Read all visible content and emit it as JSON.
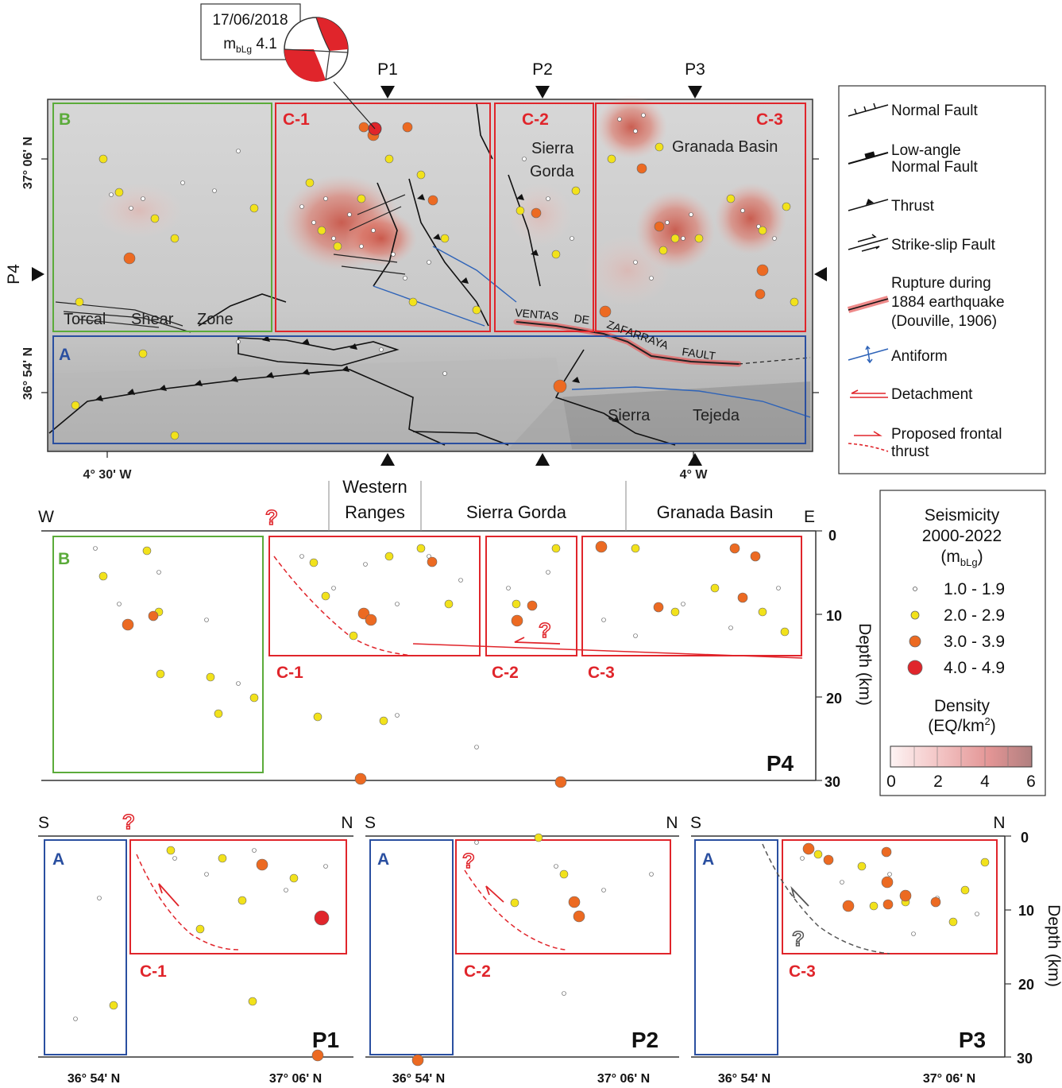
{
  "focal_label": {
    "date": "17/06/2018",
    "mag_prefix": "m",
    "mag_sub": "bLg",
    "mag_value": " 4.1"
  },
  "profile_markers": [
    "P1",
    "P2",
    "P3",
    "P4"
  ],
  "map": {
    "lat_labels": [
      "37° 06' N",
      "36° 54' N"
    ],
    "lon_labels": [
      "4° 30' W",
      "4° W"
    ],
    "boxes": {
      "B": "B",
      "C1": "C-1",
      "C2": "C-2",
      "C3": "C-3",
      "A": "A"
    },
    "places": {
      "sierra_gorda_1": "Sierra",
      "sierra_gorda_2": "Gorda",
      "granada_basin": "Granada Basin",
      "torcal": "Torcal",
      "shear": "Shear",
      "zone": "Zone",
      "sierra_tejeda_1": "Sierra",
      "sierra_tejeda_2": "Tejeda",
      "ventas": "VENTAS",
      "de": "DE",
      "zafarraya": "ZAFARRAYA",
      "fault": "FAULT"
    },
    "colors": {
      "box_A": "#2a4fa0",
      "box_B": "#5bab3a",
      "box_C": "#e0252b",
      "fault_rupture": "#e85a5a",
      "antiform": "#2e63b8"
    }
  },
  "legend": {
    "items": [
      "Normal Fault",
      "Low-angle",
      "Normal Fault",
      "Thrust",
      "Strike-slip Fault",
      "Rupture during",
      "1884 earthquake",
      "(Douville, 1906)",
      "Antiform",
      "Detachment",
      "Proposed frontal",
      "thrust"
    ]
  },
  "seis_legend": {
    "title1": "Seismicity",
    "title2": "2000-2022",
    "unit_prefix": "(m",
    "unit_sub": "bLg",
    "unit_suffix": ")",
    "classes": [
      "1.0 - 1.9",
      "2.0 - 2.9",
      "3.0 - 3.9",
      "4.0 - 4.9"
    ],
    "class_colors": [
      "#ffffff",
      "#f2e21b",
      "#ec6a22",
      "#e0252b"
    ],
    "density_title1": "Density",
    "density_title2": "(EQ/km",
    "density_sup": "2",
    "density_title_end": ")",
    "density_ticks": [
      "0",
      "2",
      "4",
      "6"
    ],
    "density_colors": [
      "#fdf1f1",
      "#f7cfcf",
      "#eea9a9",
      "#e38b8b",
      "#d47f7f",
      "#bd7f7f"
    ]
  },
  "p4": {
    "west": "W",
    "east": "E",
    "regions": [
      "Western",
      "Ranges",
      "Sierra  Gorda",
      "Granada Basin"
    ],
    "depth_ticks": [
      "0",
      "10",
      "20",
      "30"
    ],
    "depth_label": "Depth (km)",
    "box_labels": {
      "B": "B",
      "C1": "C-1",
      "C2": "C-2",
      "C3": "C-3"
    },
    "name": "P4",
    "question": "?"
  },
  "small_profiles": [
    {
      "name": "P1",
      "south": "S",
      "north": "N",
      "box_a": "A",
      "box_c": "C-1",
      "lat1": "36° 54' N",
      "lat2": "37° 06' N"
    },
    {
      "name": "P2",
      "south": "S",
      "north": "N",
      "box_a": "A",
      "box_c": "C-2",
      "lat1": "36° 54' N",
      "lat2": "37° 06' N"
    },
    {
      "name": "P3",
      "south": "S",
      "north": "N",
      "box_a": "A",
      "box_c": "C-3",
      "lat1": "36° 54' N",
      "lat2": "37° 06' N"
    }
  ],
  "small_depth_ticks": [
    "0",
    "10",
    "20",
    "30"
  ],
  "small_depth_label": "Depth (km)"
}
